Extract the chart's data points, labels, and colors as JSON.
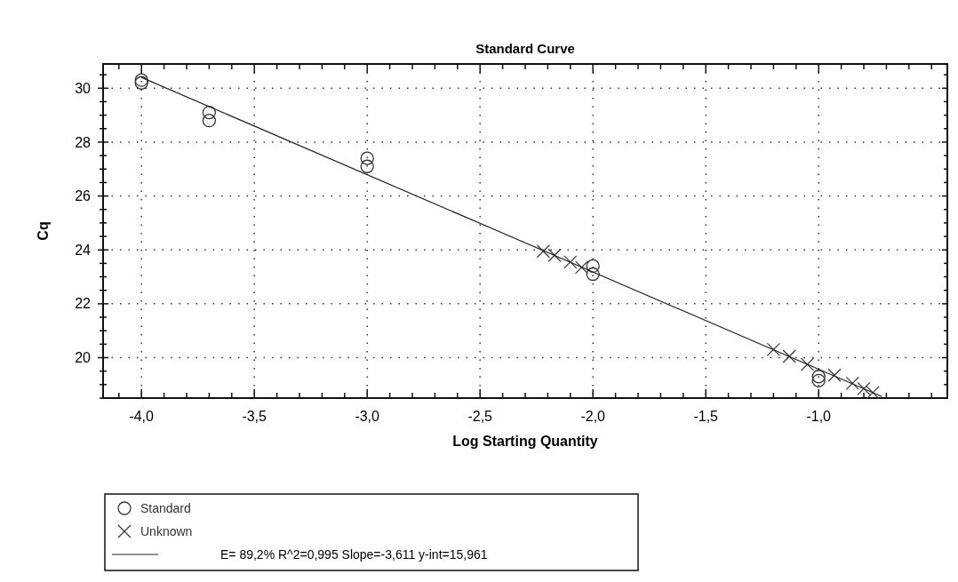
{
  "chart_data": {
    "type": "scatter",
    "title": "Standard Curve",
    "xlabel": "Log Starting Quantity",
    "ylabel": "Cq",
    "xlim": [
      -4.17,
      -0.43
    ],
    "ylim": [
      18.5,
      30.9
    ],
    "xticks": [
      {
        "value": -4.1,
        "label": null
      },
      {
        "value": -4.0,
        "label": "-4,0"
      },
      {
        "value": -3.9,
        "label": null
      },
      {
        "value": -3.8,
        "label": null
      },
      {
        "value": -3.7,
        "label": null
      },
      {
        "value": -3.6,
        "label": null
      },
      {
        "value": -3.5,
        "label": "-3,5"
      },
      {
        "value": -3.4,
        "label": null
      },
      {
        "value": -3.3,
        "label": null
      },
      {
        "value": -3.2,
        "label": null
      },
      {
        "value": -3.1,
        "label": null
      },
      {
        "value": -3.0,
        "label": "-3,0"
      },
      {
        "value": -2.9,
        "label": null
      },
      {
        "value": -2.8,
        "label": null
      },
      {
        "value": -2.7,
        "label": null
      },
      {
        "value": -2.6,
        "label": null
      },
      {
        "value": -2.5,
        "label": "-2,5"
      },
      {
        "value": -2.4,
        "label": null
      },
      {
        "value": -2.3,
        "label": null
      },
      {
        "value": -2.2,
        "label": null
      },
      {
        "value": -2.1,
        "label": null
      },
      {
        "value": -2.0,
        "label": "-2,0"
      },
      {
        "value": -1.9,
        "label": null
      },
      {
        "value": -1.8,
        "label": null
      },
      {
        "value": -1.7,
        "label": null
      },
      {
        "value": -1.6,
        "label": null
      },
      {
        "value": -1.5,
        "label": "-1,5"
      },
      {
        "value": -1.4,
        "label": null
      },
      {
        "value": -1.3,
        "label": null
      },
      {
        "value": -1.2,
        "label": null
      },
      {
        "value": -1.1,
        "label": null
      },
      {
        "value": -1.0,
        "label": "-1,0"
      },
      {
        "value": -0.9,
        "label": null
      },
      {
        "value": -0.8,
        "label": null
      },
      {
        "value": -0.7,
        "label": null
      },
      {
        "value": -0.6,
        "label": null
      },
      {
        "value": -0.5,
        "label": null
      }
    ],
    "yticks": [
      {
        "value": 18.5,
        "label": null
      },
      {
        "value": 19,
        "label": null
      },
      {
        "value": 19.5,
        "label": null
      },
      20,
      {
        "value": 20.5,
        "label": null
      },
      {
        "value": 21,
        "label": null
      },
      {
        "value": 21.5,
        "label": null
      },
      22,
      {
        "value": 22.5,
        "label": null
      },
      {
        "value": 23,
        "label": null
      },
      {
        "value": 23.5,
        "label": null
      },
      24,
      {
        "value": 24.5,
        "label": null
      },
      {
        "value": 25,
        "label": null
      },
      {
        "value": 25.5,
        "label": null
      },
      26,
      {
        "value": 26.5,
        "label": null
      },
      {
        "value": 27,
        "label": null
      },
      {
        "value": 27.5,
        "label": null
      },
      28,
      {
        "value": 28.5,
        "label": null
      },
      {
        "value": 29,
        "label": null
      },
      {
        "value": 29.5,
        "label": null
      },
      30,
      {
        "value": 30.5,
        "label": null
      }
    ],
    "grid": true,
    "legend": "bottom",
    "series": [
      {
        "name": "Standard",
        "type": "scatter",
        "marker": "circle",
        "color": "#333333",
        "x": [
          -4.0,
          -4.0,
          -3.7,
          -3.7,
          -3.0,
          -3.0,
          -2.0,
          -2.0,
          -1.0,
          -1.0
        ],
        "values": [
          30.3,
          30.2,
          29.1,
          28.8,
          27.4,
          27.1,
          23.4,
          23.1,
          19.3,
          19.15
        ]
      },
      {
        "name": "Unknown",
        "type": "scatter",
        "marker": "cross",
        "color": "#333333",
        "x": [
          -2.22,
          -2.17,
          -2.1,
          -2.05,
          -1.2,
          -1.13,
          -1.05,
          -0.93,
          -0.85,
          -0.8,
          -0.76
        ],
        "values": [
          23.95,
          23.8,
          23.55,
          23.35,
          20.3,
          20.05,
          19.75,
          19.35,
          19.05,
          18.85,
          18.7
        ]
      },
      {
        "type": "line",
        "marker": "none",
        "line_style": "solid",
        "color": "#222222",
        "x": [
          -4.0,
          -0.72
        ],
        "values": [
          30.4,
          18.56
        ]
      }
    ],
    "annotations": [
      "E= 89,2% R^2=0,995 Slope=-3,611 y-int=15,961"
    ]
  }
}
